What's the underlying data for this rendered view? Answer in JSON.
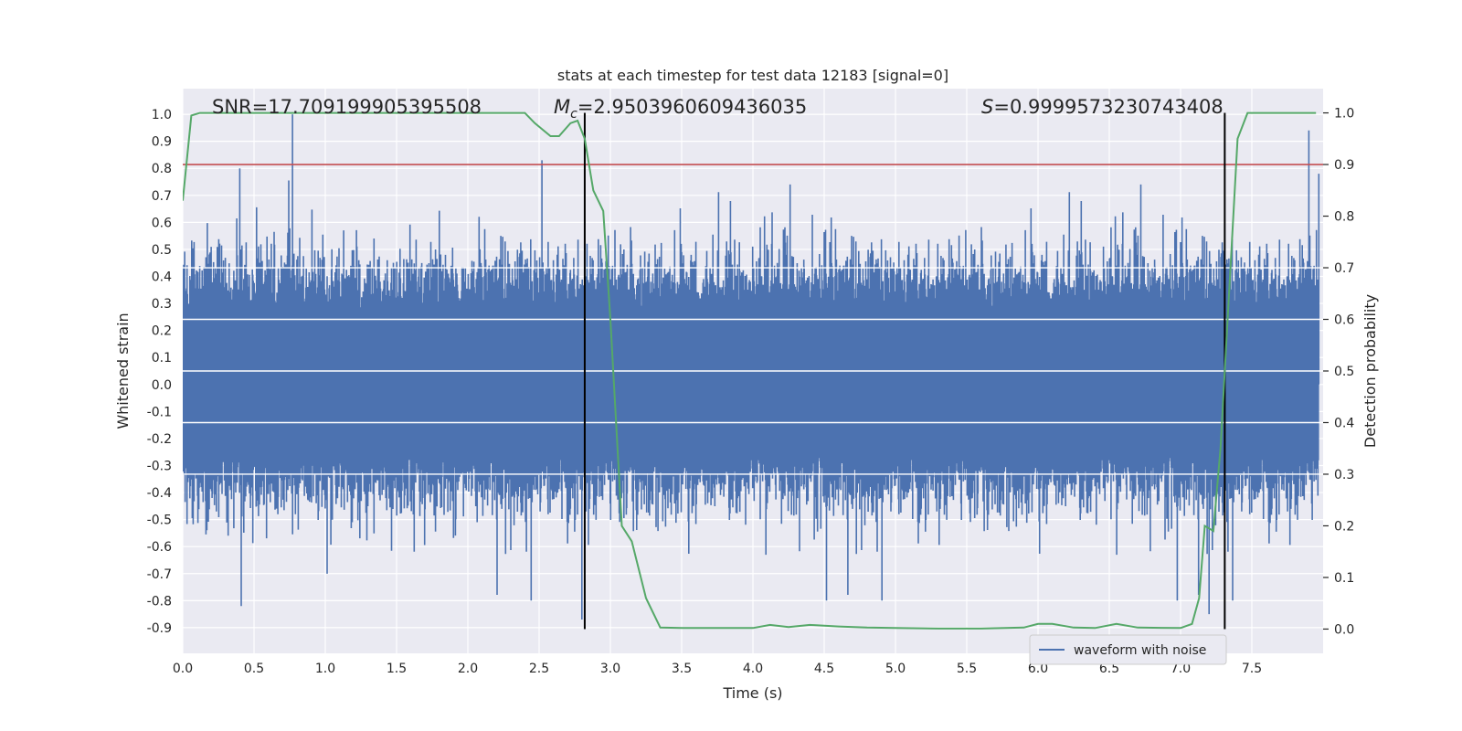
{
  "chart_data": {
    "type": "line",
    "title": "stats at each timestep for test data 12183 [signal=0]",
    "xlabel": "Time (s)",
    "ylabel_left": "Whitened strain",
    "ylabel_right": "Detection probability",
    "xlim": [
      0.0,
      8.0
    ],
    "ylim_left": [
      -0.995,
      1.095
    ],
    "ylim_right": [
      -0.047,
      1.047
    ],
    "x_ticks": [
      "0.0",
      "0.5",
      "1.0",
      "1.5",
      "2.0",
      "2.5",
      "3.0",
      "3.5",
      "4.0",
      "4.5",
      "5.0",
      "5.5",
      "6.0",
      "6.5",
      "7.0",
      "7.5"
    ],
    "y_ticks_left": [
      "1.0",
      "0.9",
      "0.8",
      "0.7",
      "0.6",
      "0.5",
      "0.4",
      "0.3",
      "0.2",
      "0.1",
      "0.0",
      "-0.1",
      "-0.2",
      "-0.3",
      "-0.4",
      "-0.5",
      "-0.6",
      "-0.7",
      "-0.8",
      "-0.9"
    ],
    "y_ticks_right": [
      "1.0",
      "0.9",
      "0.8",
      "0.7",
      "0.6",
      "0.5",
      "0.4",
      "0.3",
      "0.2",
      "0.1",
      "0.0"
    ],
    "grid": true,
    "legend": {
      "placement": "lower-right",
      "entries": [
        "waveform with noise"
      ]
    },
    "annotations": {
      "snr": "SNR=17.709199905395508",
      "mc_symbol": "M",
      "mc_sub": "c",
      "mc_value": "=2.9503960609436035",
      "s_symbol": "S",
      "s_value": "=0.9999573230743408"
    },
    "vertical_lines_x": [
      2.82,
      7.31
    ],
    "threshold_probability": 0.9,
    "series": [
      {
        "name": "waveform with noise",
        "axis": "left",
        "color": "#4c72b0",
        "description_amplitude": {
          "typical_abs": 0.35,
          "max": 1.0,
          "min": -0.87
        },
        "peaks": [
          {
            "x": 0.4,
            "y": 0.8
          },
          {
            "x": 0.77,
            "y": 1.0
          },
          {
            "x": 2.52,
            "y": 0.83
          },
          {
            "x": 2.8,
            "y": -0.87
          },
          {
            "x": 7.2,
            "y": -0.85
          },
          {
            "x": 7.9,
            "y": 0.94
          },
          {
            "x": 7.97,
            "y": 0.78
          },
          {
            "x": 0.41,
            "y": -0.82
          }
        ]
      },
      {
        "name": "",
        "axis": "right",
        "color": "#55a868",
        "x": [
          0.0,
          0.06,
          0.12,
          0.5,
          1.0,
          1.5,
          2.0,
          2.4,
          2.47,
          2.58,
          2.64,
          2.72,
          2.77,
          2.82,
          2.88,
          2.95,
          3.0,
          3.08,
          3.15,
          3.25,
          3.35,
          3.5,
          3.8,
          4.0,
          4.12,
          4.25,
          4.4,
          4.6,
          4.8,
          5.0,
          5.3,
          5.6,
          5.9,
          6.0,
          6.1,
          6.25,
          6.4,
          6.55,
          6.7,
          7.0,
          7.08,
          7.13,
          7.17,
          7.23,
          7.28,
          7.33,
          7.4,
          7.47,
          7.55,
          7.8,
          7.95
        ],
        "y": [
          0.83,
          0.995,
          1.0,
          1.0,
          1.0,
          1.0,
          1.0,
          1.0,
          0.98,
          0.955,
          0.955,
          0.98,
          0.985,
          0.95,
          0.85,
          0.81,
          0.6,
          0.2,
          0.17,
          0.06,
          0.003,
          0.002,
          0.002,
          0.002,
          0.008,
          0.004,
          0.008,
          0.005,
          0.003,
          0.002,
          0.001,
          0.001,
          0.003,
          0.01,
          0.01,
          0.003,
          0.002,
          0.01,
          0.003,
          0.002,
          0.01,
          0.06,
          0.2,
          0.19,
          0.35,
          0.6,
          0.95,
          1.0,
          1.0,
          1.0,
          1.0
        ]
      }
    ]
  }
}
